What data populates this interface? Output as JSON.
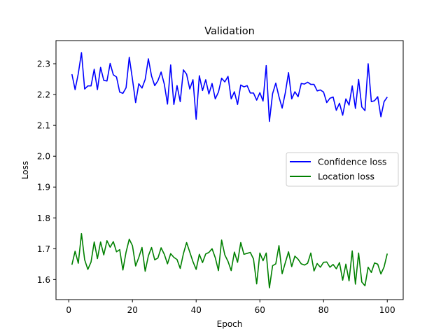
{
  "chart_data": {
    "type": "line",
    "title": "Validation",
    "xlabel": "Epoch",
    "ylabel": "Loss",
    "xlim": [
      -4,
      105
    ],
    "ylim": [
      1.535,
      2.375
    ],
    "xticks": [
      0,
      20,
      40,
      60,
      80,
      100
    ],
    "yticks": [
      1.6,
      1.7,
      1.8,
      1.9,
      2.0,
      2.1,
      2.2,
      2.3
    ],
    "ytick_labels": [
      "1.6",
      "1.7",
      "1.8",
      "1.9",
      "2.0",
      "2.1",
      "2.2",
      "2.3"
    ],
    "grid": false,
    "legend_position": "center-right",
    "x": [
      1,
      2,
      3,
      4,
      5,
      6,
      7,
      8,
      9,
      10,
      11,
      12,
      13,
      14,
      15,
      16,
      17,
      18,
      19,
      20,
      21,
      22,
      23,
      24,
      25,
      26,
      27,
      28,
      29,
      30,
      31,
      32,
      33,
      34,
      35,
      36,
      37,
      38,
      39,
      40,
      41,
      42,
      43,
      44,
      45,
      46,
      47,
      48,
      49,
      50,
      51,
      52,
      53,
      54,
      55,
      56,
      57,
      58,
      59,
      60,
      61,
      62,
      63,
      64,
      65,
      66,
      67,
      68,
      69,
      70,
      71,
      72,
      73,
      74,
      75,
      76,
      77,
      78,
      79,
      80,
      81,
      82,
      83,
      84,
      85,
      86,
      87,
      88,
      89,
      90,
      91,
      92,
      93,
      94,
      95,
      96,
      97,
      98,
      99,
      100
    ],
    "series": [
      {
        "name": "Confidence loss",
        "color": "#0000ff",
        "values": [
          2.266,
          2.216,
          2.268,
          2.336,
          2.218,
          2.228,
          2.228,
          2.282,
          2.216,
          2.288,
          2.246,
          2.244,
          2.301,
          2.264,
          2.257,
          2.208,
          2.204,
          2.222,
          2.321,
          2.25,
          2.174,
          2.235,
          2.221,
          2.249,
          2.316,
          2.26,
          2.229,
          2.245,
          2.273,
          2.234,
          2.169,
          2.296,
          2.168,
          2.229,
          2.177,
          2.28,
          2.266,
          2.218,
          2.248,
          2.12,
          2.261,
          2.213,
          2.248,
          2.202,
          2.236,
          2.186,
          2.208,
          2.253,
          2.241,
          2.259,
          2.186,
          2.209,
          2.168,
          2.231,
          2.225,
          2.229,
          2.205,
          2.205,
          2.182,
          2.206,
          2.179,
          2.294,
          2.113,
          2.203,
          2.237,
          2.193,
          2.156,
          2.206,
          2.271,
          2.186,
          2.209,
          2.193,
          2.236,
          2.234,
          2.24,
          2.233,
          2.233,
          2.212,
          2.215,
          2.208,
          2.174,
          2.188,
          2.192,
          2.149,
          2.172,
          2.133,
          2.186,
          2.166,
          2.228,
          2.155,
          2.249,
          2.16,
          2.148,
          2.3,
          2.177,
          2.18,
          2.193,
          2.128,
          2.177,
          2.192
        ]
      },
      {
        "name": "Location loss",
        "color": "#008000",
        "values": [
          1.648,
          1.692,
          1.653,
          1.749,
          1.664,
          1.633,
          1.657,
          1.722,
          1.668,
          1.722,
          1.68,
          1.726,
          1.705,
          1.723,
          1.69,
          1.697,
          1.631,
          1.689,
          1.731,
          1.71,
          1.644,
          1.672,
          1.704,
          1.627,
          1.677,
          1.704,
          1.664,
          1.67,
          1.703,
          1.682,
          1.651,
          1.684,
          1.672,
          1.665,
          1.636,
          1.684,
          1.72,
          1.689,
          1.658,
          1.633,
          1.682,
          1.655,
          1.683,
          1.688,
          1.7,
          1.671,
          1.629,
          1.728,
          1.68,
          1.659,
          1.629,
          1.689,
          1.656,
          1.72,
          1.682,
          1.685,
          1.688,
          1.667,
          1.586,
          1.686,
          1.661,
          1.686,
          1.573,
          1.645,
          1.651,
          1.71,
          1.619,
          1.655,
          1.69,
          1.642,
          1.676,
          1.666,
          1.651,
          1.647,
          1.653,
          1.686,
          1.628,
          1.652,
          1.64,
          1.656,
          1.657,
          1.64,
          1.649,
          1.635,
          1.655,
          1.598,
          1.65,
          1.596,
          1.693,
          1.585,
          1.686,
          1.592,
          1.58,
          1.64,
          1.623,
          1.654,
          1.65,
          1.618,
          1.641,
          1.684
        ]
      }
    ]
  }
}
